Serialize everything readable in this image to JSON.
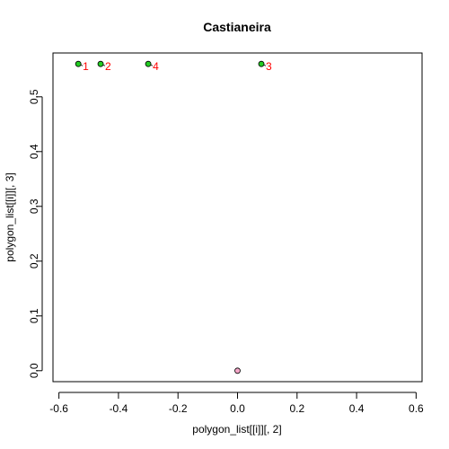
{
  "chart_data": {
    "type": "scatter",
    "title": "Castianeira",
    "xlabel": "polygon_list[[i]][, 2]",
    "ylabel": "polygon_list[[i]][, 3]",
    "xlim": [
      -0.62,
      0.62
    ],
    "ylim": [
      -0.02,
      0.58
    ],
    "xticks": [
      -0.6,
      -0.4,
      -0.2,
      0.0,
      0.2,
      0.4,
      0.6
    ],
    "xtick_labels": [
      "-0.6",
      "-0.4",
      "-0.2",
      "0.0",
      "0.2",
      "0.4",
      "0.6"
    ],
    "yticks": [
      0.0,
      0.1,
      0.2,
      0.3,
      0.4,
      0.5
    ],
    "ytick_labels": [
      "0.0",
      "0.1",
      "0.2",
      "0.3",
      "0.4",
      "0.5"
    ],
    "grid": false,
    "legend": "none",
    "series": [
      {
        "points": [
          {
            "x": -0.535,
            "y": 0.56,
            "label": "1"
          },
          {
            "x": -0.46,
            "y": 0.56,
            "label": "2"
          },
          {
            "x": 0.08,
            "y": 0.56,
            "label": "3"
          },
          {
            "x": -0.3,
            "y": 0.56,
            "label": "4"
          }
        ],
        "fill_color": "#22cc22",
        "edge_color": "#000000",
        "label_color": "#ff0000"
      },
      {
        "points": [
          {
            "x": 0.0,
            "y": 0.0,
            "label": ""
          }
        ],
        "fill_color": "#f4a6c8",
        "edge_color": "#000000",
        "label_color": "#ff0000"
      }
    ]
  }
}
